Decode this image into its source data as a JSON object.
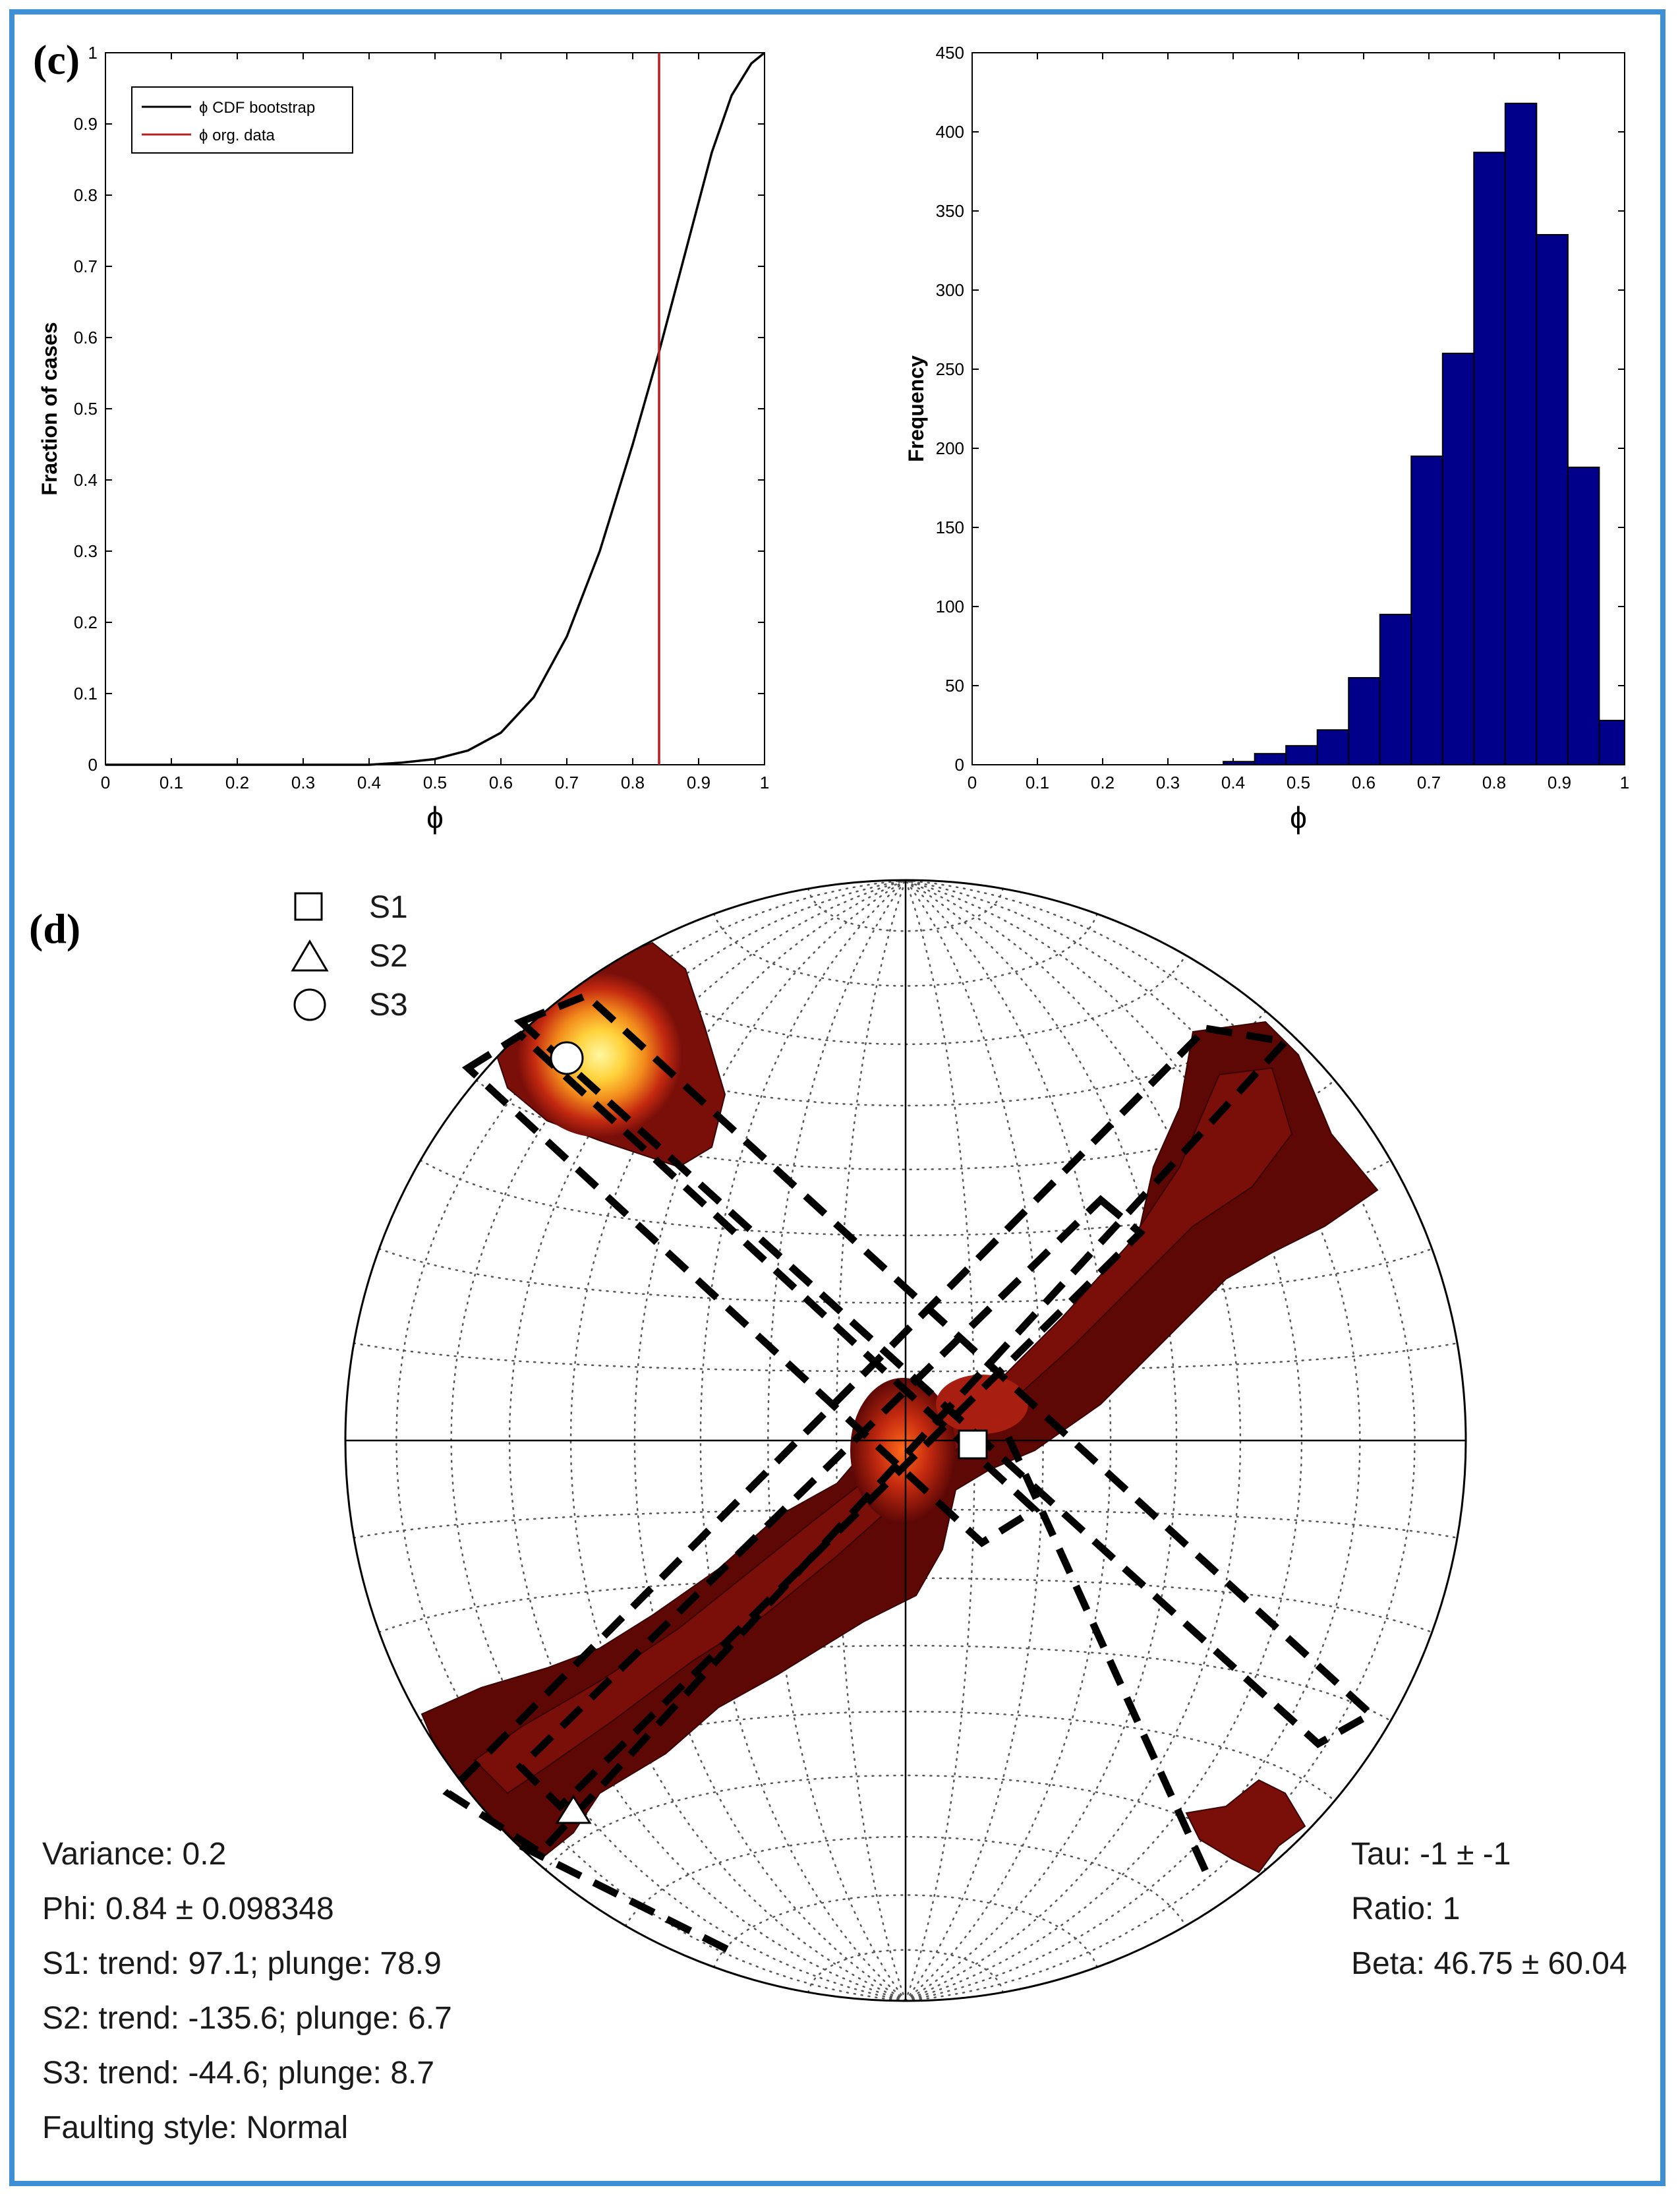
{
  "panel_c_label": "(c)",
  "panel_d_label": "(d)",
  "chart_data": [
    {
      "type": "line",
      "title": "",
      "xlabel": "ϕ",
      "ylabel": "Fraction of cases",
      "xlim": [
        0,
        1
      ],
      "ylim": [
        0,
        1
      ],
      "xticks": [
        "0",
        "0.1",
        "0.2",
        "0.3",
        "0.4",
        "0.5",
        "0.6",
        "0.7",
        "0.8",
        "0.9",
        "1"
      ],
      "yticks": [
        "0",
        "0.1",
        "0.2",
        "0.3",
        "0.4",
        "0.5",
        "0.6",
        "0.7",
        "0.8",
        "0.9",
        "1"
      ],
      "legend": [
        "ϕ CDF bootstrap",
        "ϕ org. data"
      ],
      "legend_position": "top-left",
      "series": [
        {
          "name": "ϕ CDF bootstrap",
          "color": "#000000",
          "x": [
            0.4,
            0.45,
            0.5,
            0.55,
            0.6,
            0.65,
            0.7,
            0.75,
            0.8,
            0.84,
            0.88,
            0.92,
            0.95,
            0.98,
            1.0
          ],
          "y": [
            0.0,
            0.003,
            0.008,
            0.02,
            0.045,
            0.095,
            0.18,
            0.3,
            0.45,
            0.58,
            0.72,
            0.86,
            0.94,
            0.985,
            1.0
          ]
        },
        {
          "name": "ϕ org. data",
          "color": "#b22222",
          "vline_x": 0.84
        }
      ]
    },
    {
      "type": "bar",
      "title": "",
      "xlabel": "ϕ",
      "ylabel": "Frequency",
      "xlim": [
        0,
        1
      ],
      "ylim": [
        0,
        450
      ],
      "xticks": [
        "0",
        "0.1",
        "0.2",
        "0.3",
        "0.4",
        "0.5",
        "0.6",
        "0.7",
        "0.8",
        "0.9",
        "1"
      ],
      "yticks": [
        "0",
        "50",
        "100",
        "150",
        "200",
        "250",
        "300",
        "350",
        "400",
        "450"
      ],
      "bar_color": "#00008b",
      "bin_edges": [
        0.385,
        0.433,
        0.481,
        0.529,
        0.577,
        0.625,
        0.673,
        0.721,
        0.769,
        0.817,
        0.865,
        0.913,
        0.961,
        1.0
      ],
      "values": [
        2,
        7,
        12,
        22,
        55,
        95,
        195,
        260,
        387,
        418,
        335,
        188,
        28
      ]
    }
  ],
  "stereonet": {
    "legend": [
      {
        "symbol": "square",
        "label": "S1"
      },
      {
        "symbol": "triangle",
        "label": "S2"
      },
      {
        "symbol": "circle",
        "label": "S3"
      }
    ],
    "stats_left": [
      "Variance: 0.2",
      "Phi: 0.84 ± 0.098348",
      "S1: trend: 97.1; plunge: 78.9",
      "S2: trend: -135.6; plunge: 6.7",
      "S3: trend: -44.6; plunge: 8.7",
      "Faulting style: Normal"
    ],
    "stats_right": [
      "Tau: -1 ± -1",
      "Ratio: 1",
      "Beta: 46.75 ± 60.04"
    ]
  }
}
